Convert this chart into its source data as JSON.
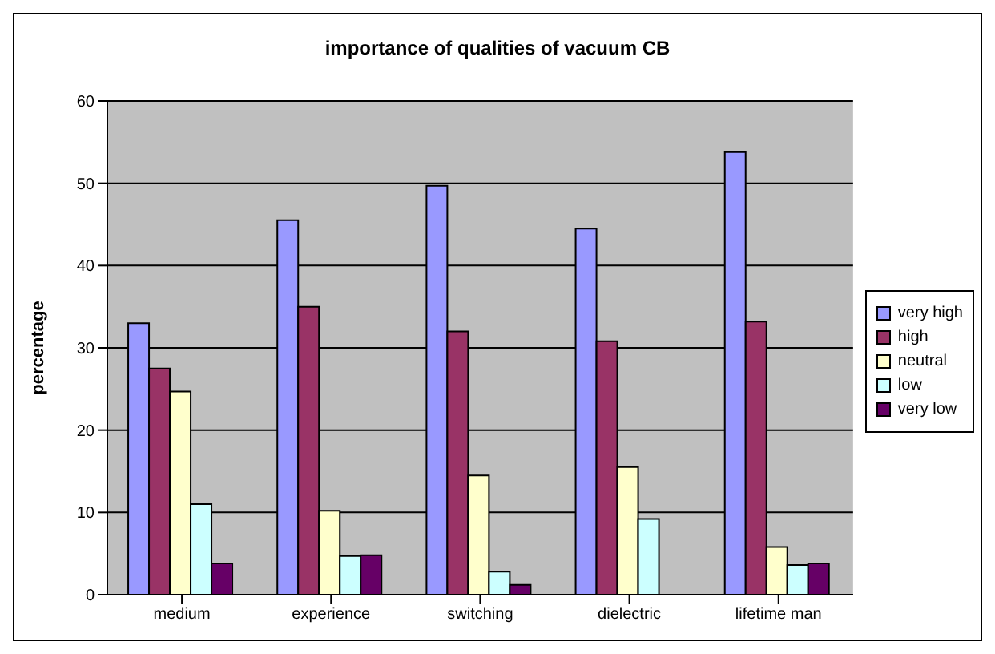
{
  "chart_data": {
    "type": "bar",
    "title": "importance of qualities of vacuum CB",
    "ylabel": "percentage",
    "categories": [
      "medium",
      "experience",
      "switching",
      "dielectric",
      "lifetime man"
    ],
    "series": [
      {
        "name": "very high",
        "color": "#9999ff",
        "values": [
          33,
          45.5,
          49.7,
          44.5,
          53.8
        ]
      },
      {
        "name": "high",
        "color": "#993366",
        "values": [
          27.5,
          35,
          32,
          30.8,
          33.2
        ]
      },
      {
        "name": "neutral",
        "color": "#ffffcc",
        "values": [
          24.7,
          10.2,
          14.5,
          15.5,
          5.8
        ]
      },
      {
        "name": "low",
        "color": "#ccffff",
        "values": [
          11,
          4.7,
          2.8,
          9.2,
          3.6
        ]
      },
      {
        "name": "very low",
        "color": "#660066",
        "values": [
          3.8,
          4.8,
          1.2,
          0,
          3.8
        ]
      }
    ],
    "ylim": [
      0,
      60
    ],
    "yticks": [
      0,
      10,
      20,
      30,
      40,
      50,
      60
    ],
    "grid": "y",
    "legend": "right"
  }
}
